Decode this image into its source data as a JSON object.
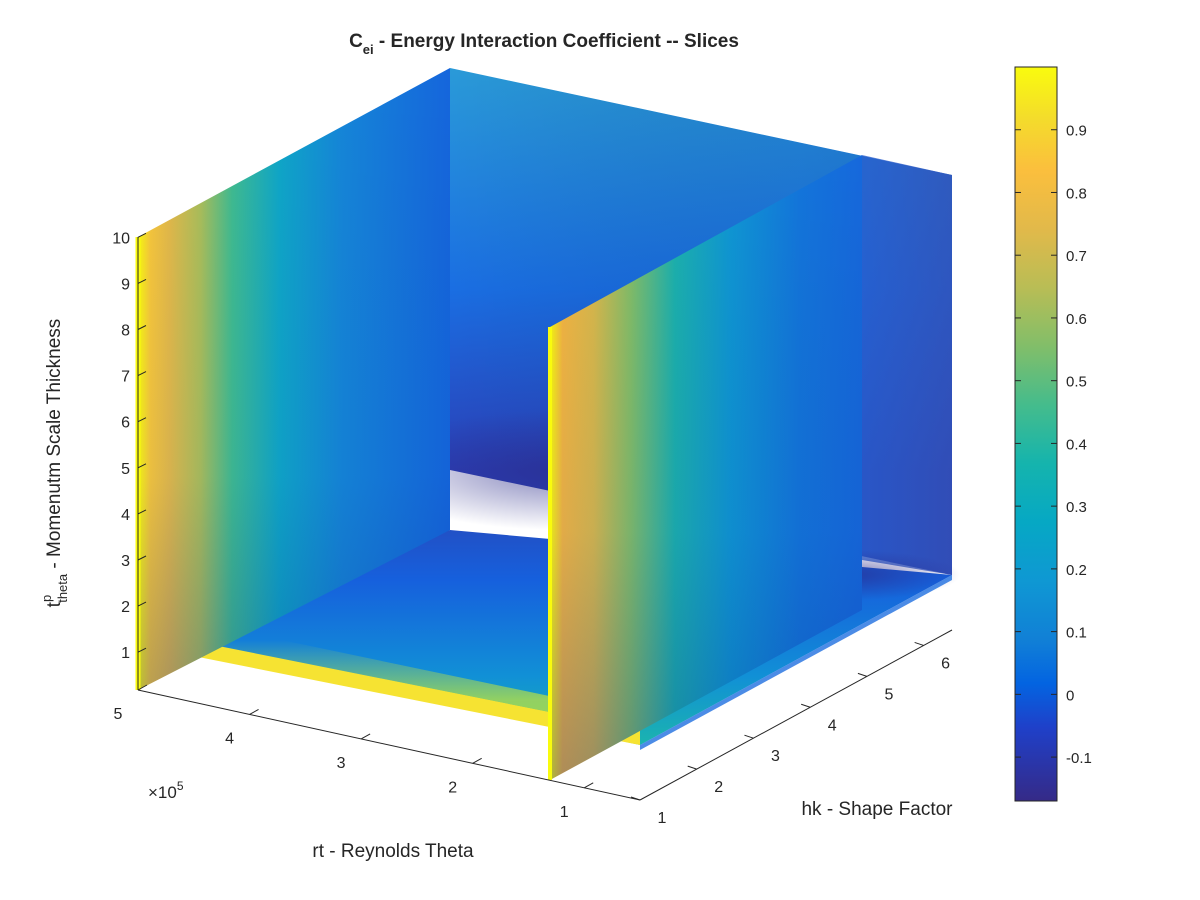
{
  "chart_data": {
    "type": "volume-slice-3d",
    "title": {
      "base": "C",
      "subscript": "ei",
      "rest": " - Energy Interaction Coefficient -- Slices"
    },
    "axes": {
      "x": {
        "label": "rt - Reynolds Theta",
        "ticks": [
          "1",
          "2",
          "3",
          "4",
          "5"
        ],
        "exponent_label": "×10",
        "exponent_power": "5",
        "range": [
          50000,
          500000
        ]
      },
      "y": {
        "label": "hk - Shape Factor",
        "ticks": [
          "1",
          "2",
          "3",
          "4",
          "5",
          "6"
        ],
        "range": [
          1,
          6.5
        ]
      },
      "z": {
        "label": {
          "base": "t",
          "superscript": "p",
          "subscript": "theta",
          "rest": " - Momenutm Scale Thickness"
        },
        "ticks": [
          "1",
          "2",
          "3",
          "4",
          "5",
          "6",
          "7",
          "8",
          "9",
          "10"
        ],
        "range": [
          0.2,
          10
        ]
      }
    },
    "slices": [
      {
        "orientation": "x",
        "at": 500000
      },
      {
        "orientation": "x",
        "at": 125000
      },
      {
        "orientation": "y",
        "at": 6.5
      },
      {
        "orientation": "z",
        "at": 1.2
      }
    ],
    "colorbar": {
      "colormap": "parula",
      "range": [
        -0.17,
        1.0
      ],
      "ticks": [
        "-0.1",
        "0",
        "0.1",
        "0.2",
        "0.3",
        "0.4",
        "0.5",
        "0.6",
        "0.7",
        "0.8",
        "0.9"
      ],
      "tick_values": [
        -0.1,
        0,
        0.1,
        0.2,
        0.3,
        0.4,
        0.5,
        0.6,
        0.7,
        0.8,
        0.9
      ]
    },
    "grid": true
  }
}
